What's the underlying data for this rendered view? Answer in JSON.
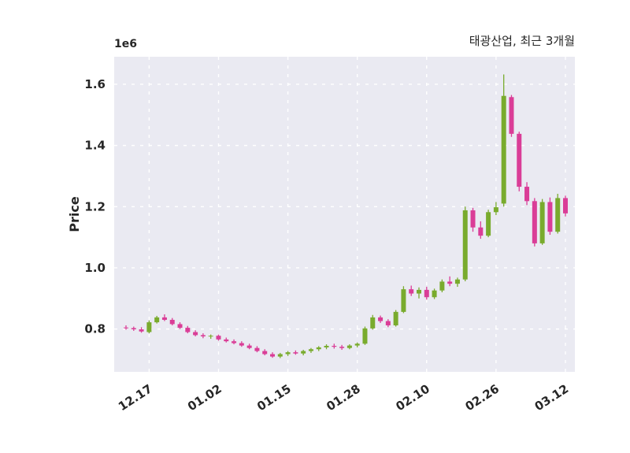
{
  "chart_data": {
    "type": "candlestick",
    "title": "태광산업, 최근 3개월",
    "ylabel": "Price",
    "y_multiplier_label": "1e6",
    "y_unit": 1000000,
    "ylim": [
      0.66,
      1.69
    ],
    "yticks": [
      0.8,
      1.0,
      1.2,
      1.4,
      1.6
    ],
    "ytick_labels": [
      "0.8",
      "1.0",
      "1.2",
      "1.4",
      "1.6"
    ],
    "xticks": [
      {
        "label": "12.17",
        "index": 3
      },
      {
        "label": "01.02",
        "index": 12
      },
      {
        "label": "01.15",
        "index": 21
      },
      {
        "label": "01.28",
        "index": 30
      },
      {
        "label": "02.10",
        "index": 39
      },
      {
        "label": "02.26",
        "index": 48
      },
      {
        "label": "03.12",
        "index": 57
      }
    ],
    "grid": true,
    "legend": "none",
    "colors": {
      "up": "#79ab2d",
      "down": "#da3d97",
      "plot_bg": "#eaeaf2",
      "grid": "#ffffff",
      "figure_bg": "#ffffff",
      "text": "#262626"
    },
    "candle_format": [
      "open",
      "high",
      "low",
      "close"
    ],
    "candles": [
      [
        0.805,
        0.812,
        0.798,
        0.803
      ],
      [
        0.803,
        0.808,
        0.794,
        0.799
      ],
      [
        0.799,
        0.806,
        0.788,
        0.792
      ],
      [
        0.79,
        0.828,
        0.786,
        0.822
      ],
      [
        0.822,
        0.843,
        0.818,
        0.838
      ],
      [
        0.838,
        0.848,
        0.826,
        0.83
      ],
      [
        0.83,
        0.836,
        0.812,
        0.816
      ],
      [
        0.816,
        0.822,
        0.8,
        0.804
      ],
      [
        0.804,
        0.81,
        0.786,
        0.79
      ],
      [
        0.79,
        0.796,
        0.776,
        0.78
      ],
      [
        0.78,
        0.786,
        0.77,
        0.776
      ],
      [
        0.776,
        0.782,
        0.768,
        0.778
      ],
      [
        0.778,
        0.782,
        0.762,
        0.766
      ],
      [
        0.766,
        0.772,
        0.756,
        0.76
      ],
      [
        0.76,
        0.766,
        0.75,
        0.754
      ],
      [
        0.754,
        0.76,
        0.742,
        0.746
      ],
      [
        0.746,
        0.752,
        0.734,
        0.738
      ],
      [
        0.738,
        0.744,
        0.724,
        0.728
      ],
      [
        0.728,
        0.734,
        0.714,
        0.718
      ],
      [
        0.718,
        0.724,
        0.706,
        0.71
      ],
      [
        0.71,
        0.722,
        0.705,
        0.718
      ],
      [
        0.718,
        0.728,
        0.712,
        0.724
      ],
      [
        0.724,
        0.73,
        0.716,
        0.72
      ],
      [
        0.72,
        0.732,
        0.714,
        0.728
      ],
      [
        0.728,
        0.738,
        0.722,
        0.734
      ],
      [
        0.734,
        0.744,
        0.728,
        0.74
      ],
      [
        0.74,
        0.75,
        0.734,
        0.745
      ],
      [
        0.745,
        0.752,
        0.736,
        0.742
      ],
      [
        0.742,
        0.748,
        0.732,
        0.738
      ],
      [
        0.738,
        0.75,
        0.734,
        0.746
      ],
      [
        0.746,
        0.756,
        0.74,
        0.752
      ],
      [
        0.752,
        0.808,
        0.748,
        0.802
      ],
      [
        0.802,
        0.846,
        0.798,
        0.838
      ],
      [
        0.838,
        0.844,
        0.82,
        0.826
      ],
      [
        0.826,
        0.832,
        0.806,
        0.812
      ],
      [
        0.812,
        0.862,
        0.808,
        0.856
      ],
      [
        0.856,
        0.94,
        0.852,
        0.93
      ],
      [
        0.93,
        0.942,
        0.908,
        0.916
      ],
      [
        0.916,
        0.936,
        0.9,
        0.928
      ],
      [
        0.928,
        0.938,
        0.896,
        0.904
      ],
      [
        0.904,
        0.932,
        0.898,
        0.926
      ],
      [
        0.926,
        0.962,
        0.92,
        0.955
      ],
      [
        0.955,
        0.972,
        0.94,
        0.948
      ],
      [
        0.948,
        0.968,
        0.938,
        0.962
      ],
      [
        0.962,
        1.2,
        0.956,
        1.188
      ],
      [
        1.188,
        1.196,
        1.118,
        1.132
      ],
      [
        1.132,
        1.152,
        1.095,
        1.105
      ],
      [
        1.105,
        1.19,
        1.1,
        1.182
      ],
      [
        1.182,
        1.215,
        1.172,
        1.198
      ],
      [
        1.21,
        1.632,
        1.2,
        1.562
      ],
      [
        1.558,
        1.565,
        1.428,
        1.438
      ],
      [
        1.438,
        1.445,
        1.25,
        1.265
      ],
      [
        1.265,
        1.28,
        1.205,
        1.218
      ],
      [
        1.218,
        1.228,
        1.07,
        1.08
      ],
      [
        1.08,
        1.225,
        1.075,
        1.215
      ],
      [
        1.215,
        1.23,
        1.108,
        1.118
      ],
      [
        1.118,
        1.242,
        1.112,
        1.228
      ],
      [
        1.228,
        1.236,
        1.168,
        1.178
      ]
    ]
  }
}
